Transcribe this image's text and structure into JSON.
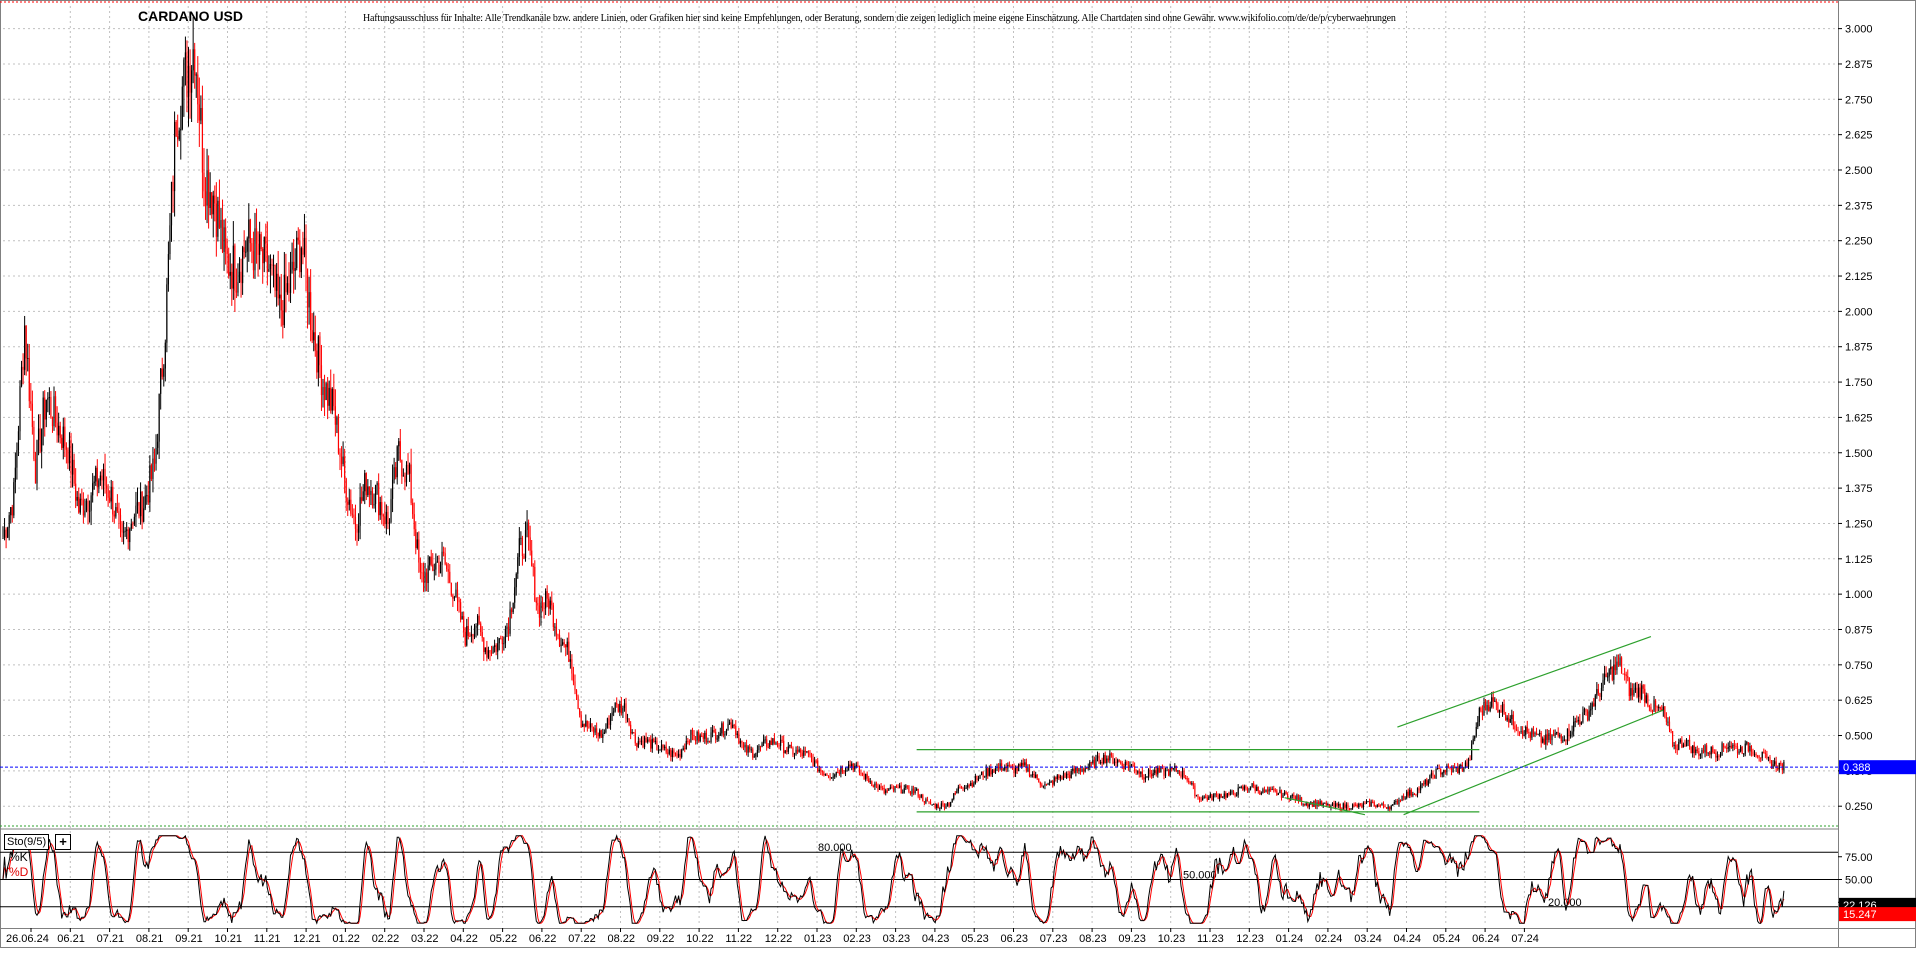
{
  "chart_data": [
    {
      "type": "candlestick",
      "title": "CARDANO USD",
      "subtitle": "Haftungsausschluss für Inhalte: Alle Trendkanäle bzw. andere Linien, oder Grafiken hier sind keine Empfehlungen, oder Beratung, sondern die zeigen lediglich meine eigene Einschätzung. Alle Chartdaten sind ohne Gewähr. www.wikifolio.com/de/de/p/cyberwaehrungen",
      "ylim": [
        0.18,
        3.08
      ],
      "grid": true,
      "y_ticks": [
        "3.000",
        "2.875",
        "2.750",
        "2.625",
        "2.500",
        "2.375",
        "2.250",
        "2.125",
        "2.000",
        "1.875",
        "1.750",
        "1.625",
        "1.500",
        "1.375",
        "1.250",
        "1.125",
        "1.000",
        "0.875",
        "0.750",
        "0.625",
        "0.500",
        "0.375",
        "0.250"
      ],
      "x_ticks": [
        "26.06.24",
        "06.21",
        "07.21",
        "08.21",
        "09.21",
        "10.21",
        "11.21",
        "12.21",
        "01.22",
        "02.22",
        "03.22",
        "04.22",
        "05.22",
        "06.22",
        "07.22",
        "08.22",
        "09.22",
        "10.22",
        "11.22",
        "12.22",
        "01.23",
        "02.23",
        "03.23",
        "04.23",
        "05.23",
        "06.23",
        "07.23",
        "08.23",
        "09.23",
        "10.23",
        "11.23",
        "12.23",
        "01.24",
        "02.24",
        "03.24",
        "04.24",
        "05.24",
        "06.24",
        "07.24"
      ],
      "x_start": "2021-05-01",
      "x_end": "2024-07-31",
      "price_anchors": [
        [
          "2021-05-01",
          1.2
        ],
        [
          "2021-05-08",
          1.35
        ],
        [
          "2021-05-15",
          1.95
        ],
        [
          "2021-05-22",
          1.45
        ],
        [
          "2021-05-29",
          1.7
        ],
        [
          "2021-06-05",
          1.6
        ],
        [
          "2021-06-12",
          1.52
        ],
        [
          "2021-06-19",
          1.3
        ],
        [
          "2021-06-26",
          1.35
        ],
        [
          "2021-07-03",
          1.42
        ],
        [
          "2021-07-10",
          1.35
        ],
        [
          "2021-07-17",
          1.18
        ],
        [
          "2021-07-24",
          1.28
        ],
        [
          "2021-07-31",
          1.32
        ],
        [
          "2021-08-07",
          1.45
        ],
        [
          "2021-08-14",
          1.95
        ],
        [
          "2021-08-21",
          2.7
        ],
        [
          "2021-08-28",
          2.85
        ],
        [
          "2021-09-02",
          2.95
        ],
        [
          "2021-09-08",
          2.5
        ],
        [
          "2021-09-15",
          2.4
        ],
        [
          "2021-09-22",
          2.18
        ],
        [
          "2021-09-29",
          2.15
        ],
        [
          "2021-10-06",
          2.25
        ],
        [
          "2021-10-13",
          2.2
        ],
        [
          "2021-10-20",
          2.15
        ],
        [
          "2021-10-27",
          2.0
        ],
        [
          "2021-11-03",
          2.1
        ],
        [
          "2021-11-10",
          2.25
        ],
        [
          "2021-11-17",
          1.95
        ],
        [
          "2021-11-24",
          1.75
        ],
        [
          "2021-12-01",
          1.65
        ],
        [
          "2021-12-08",
          1.4
        ],
        [
          "2021-12-15",
          1.25
        ],
        [
          "2021-12-22",
          1.4
        ],
        [
          "2021-12-29",
          1.35
        ],
        [
          "2022-01-05",
          1.25
        ],
        [
          "2022-01-12",
          1.5
        ],
        [
          "2022-01-19",
          1.4
        ],
        [
          "2022-01-26",
          1.05
        ],
        [
          "2022-02-03",
          1.1
        ],
        [
          "2022-02-10",
          1.12
        ],
        [
          "2022-02-17",
          1.0
        ],
        [
          "2022-02-24",
          0.85
        ],
        [
          "2022-03-03",
          0.9
        ],
        [
          "2022-03-10",
          0.8
        ],
        [
          "2022-03-17",
          0.82
        ],
        [
          "2022-03-24",
          0.9
        ],
        [
          "2022-03-31",
          1.15
        ],
        [
          "2022-04-05",
          1.2
        ],
        [
          "2022-04-12",
          0.95
        ],
        [
          "2022-04-19",
          0.98
        ],
        [
          "2022-04-26",
          0.85
        ],
        [
          "2022-05-03",
          0.78
        ],
        [
          "2022-05-10",
          0.55
        ],
        [
          "2022-05-17",
          0.52
        ],
        [
          "2022-05-24",
          0.5
        ],
        [
          "2022-05-31",
          0.6
        ],
        [
          "2022-06-07",
          0.6
        ],
        [
          "2022-06-14",
          0.48
        ],
        [
          "2022-06-21",
          0.48
        ],
        [
          "2022-06-28",
          0.46
        ],
        [
          "2022-07-05",
          0.44
        ],
        [
          "2022-07-12",
          0.43
        ],
        [
          "2022-07-19",
          0.5
        ],
        [
          "2022-07-26",
          0.49
        ],
        [
          "2022-08-02",
          0.5
        ],
        [
          "2022-08-09",
          0.52
        ],
        [
          "2022-08-16",
          0.55
        ],
        [
          "2022-08-23",
          0.45
        ],
        [
          "2022-08-30",
          0.44
        ],
        [
          "2022-09-06",
          0.47
        ],
        [
          "2022-09-13",
          0.48
        ],
        [
          "2022-09-20",
          0.45
        ],
        [
          "2022-09-27",
          0.44
        ],
        [
          "2022-10-04",
          0.43
        ],
        [
          "2022-10-11",
          0.38
        ],
        [
          "2022-10-18",
          0.36
        ],
        [
          "2022-10-25",
          0.38
        ],
        [
          "2022-11-01",
          0.4
        ],
        [
          "2022-11-08",
          0.36
        ],
        [
          "2022-11-15",
          0.33
        ],
        [
          "2022-11-22",
          0.3
        ],
        [
          "2022-11-29",
          0.31
        ],
        [
          "2022-12-06",
          0.31
        ],
        [
          "2022-12-13",
          0.3
        ],
        [
          "2022-12-20",
          0.26
        ],
        [
          "2022-12-27",
          0.25
        ],
        [
          "2023-01-03",
          0.26
        ],
        [
          "2023-01-10",
          0.32
        ],
        [
          "2023-01-17",
          0.33
        ],
        [
          "2023-01-24",
          0.36
        ],
        [
          "2023-01-31",
          0.38
        ],
        [
          "2023-02-07",
          0.39
        ],
        [
          "2023-02-14",
          0.38
        ],
        [
          "2023-02-21",
          0.39
        ],
        [
          "2023-02-28",
          0.35
        ],
        [
          "2023-03-07",
          0.32
        ],
        [
          "2023-03-14",
          0.35
        ],
        [
          "2023-03-21",
          0.36
        ],
        [
          "2023-03-28",
          0.38
        ],
        [
          "2023-04-04",
          0.39
        ],
        [
          "2023-04-11",
          0.42
        ],
        [
          "2023-04-18",
          0.42
        ],
        [
          "2023-04-25",
          0.4
        ],
        [
          "2023-05-02",
          0.39
        ],
        [
          "2023-05-09",
          0.36
        ],
        [
          "2023-05-16",
          0.37
        ],
        [
          "2023-05-23",
          0.37
        ],
        [
          "2023-05-30",
          0.38
        ],
        [
          "2023-06-06",
          0.35
        ],
        [
          "2023-06-13",
          0.28
        ],
        [
          "2023-06-20",
          0.28
        ],
        [
          "2023-06-27",
          0.29
        ],
        [
          "2023-07-04",
          0.29
        ],
        [
          "2023-07-11",
          0.31
        ],
        [
          "2023-07-18",
          0.32
        ],
        [
          "2023-07-25",
          0.3
        ],
        [
          "2023-08-01",
          0.3
        ],
        [
          "2023-08-08",
          0.29
        ],
        [
          "2023-08-15",
          0.28
        ],
        [
          "2023-08-22",
          0.26
        ],
        [
          "2023-08-29",
          0.26
        ],
        [
          "2023-09-05",
          0.25
        ],
        [
          "2023-09-12",
          0.25
        ],
        [
          "2023-09-19",
          0.25
        ],
        [
          "2023-09-26",
          0.25
        ],
        [
          "2023-10-03",
          0.26
        ],
        [
          "2023-10-10",
          0.25
        ],
        [
          "2023-10-17",
          0.25
        ],
        [
          "2023-10-24",
          0.29
        ],
        [
          "2023-10-31",
          0.3
        ],
        [
          "2023-11-07",
          0.33
        ],
        [
          "2023-11-14",
          0.37
        ],
        [
          "2023-11-21",
          0.38
        ],
        [
          "2023-11-28",
          0.38
        ],
        [
          "2023-12-05",
          0.4
        ],
        [
          "2023-12-12",
          0.58
        ],
        [
          "2023-12-19",
          0.62
        ],
        [
          "2023-12-26",
          0.6
        ],
        [
          "2024-01-02",
          0.55
        ],
        [
          "2024-01-09",
          0.52
        ],
        [
          "2024-01-16",
          0.5
        ],
        [
          "2024-01-23",
          0.48
        ],
        [
          "2024-01-30",
          0.5
        ],
        [
          "2024-02-06",
          0.5
        ],
        [
          "2024-02-13",
          0.55
        ],
        [
          "2024-02-20",
          0.58
        ],
        [
          "2024-02-27",
          0.65
        ],
        [
          "2024-03-05",
          0.72
        ],
        [
          "2024-03-12",
          0.75
        ],
        [
          "2024-03-19",
          0.65
        ],
        [
          "2024-03-26",
          0.66
        ],
        [
          "2024-04-02",
          0.6
        ],
        [
          "2024-04-09",
          0.58
        ],
        [
          "2024-04-16",
          0.46
        ],
        [
          "2024-04-23",
          0.48
        ],
        [
          "2024-04-30",
          0.44
        ],
        [
          "2024-05-07",
          0.45
        ],
        [
          "2024-05-14",
          0.44
        ],
        [
          "2024-05-21",
          0.47
        ],
        [
          "2024-05-28",
          0.45
        ],
        [
          "2024-06-04",
          0.46
        ],
        [
          "2024-06-11",
          0.43
        ],
        [
          "2024-06-18",
          0.4
        ],
        [
          "2024-06-26",
          0.39
        ]
      ],
      "last_price": "0.388",
      "trendlines": [
        {
          "from": [
            "2022-12-13",
            0.45
          ],
          "to": [
            "2023-12-12",
            0.45
          ]
        },
        {
          "from": [
            "2022-12-13",
            0.23
          ],
          "to": [
            "2023-12-12",
            0.23
          ]
        },
        {
          "from": [
            "2023-08-08",
            0.28
          ],
          "to": [
            "2023-09-29",
            0.22
          ]
        },
        {
          "from": [
            "2023-10-20",
            0.53
          ],
          "to": [
            "2024-04-01",
            0.85
          ]
        },
        {
          "from": [
            "2023-10-24",
            0.22
          ],
          "to": [
            "2024-04-09",
            0.59
          ]
        }
      ],
      "colors": {
        "up": "#000000",
        "down": "#ff0000",
        "trendline": "#2ca02c",
        "price_line": "#0000ff",
        "price_box": "#0000ff",
        "grid": "#c0c0c0"
      }
    },
    {
      "type": "line",
      "name": "Sto(9/5)",
      "ylim": [
        0,
        100
      ],
      "series": [
        {
          "name": "%K",
          "color": "#000000"
        },
        {
          "name": "%D",
          "color": "#ff0000"
        }
      ],
      "levels": [
        "80.000",
        "50.000",
        "20.000"
      ],
      "level_values": [
        80,
        50,
        20
      ],
      "y_ticks": [
        "75.00",
        "50.00",
        "25.00"
      ],
      "last_k": "22.126",
      "last_d": "15.247",
      "colors": {
        "k_box": "#000000",
        "d_box": "#ff0000"
      }
    }
  ]
}
